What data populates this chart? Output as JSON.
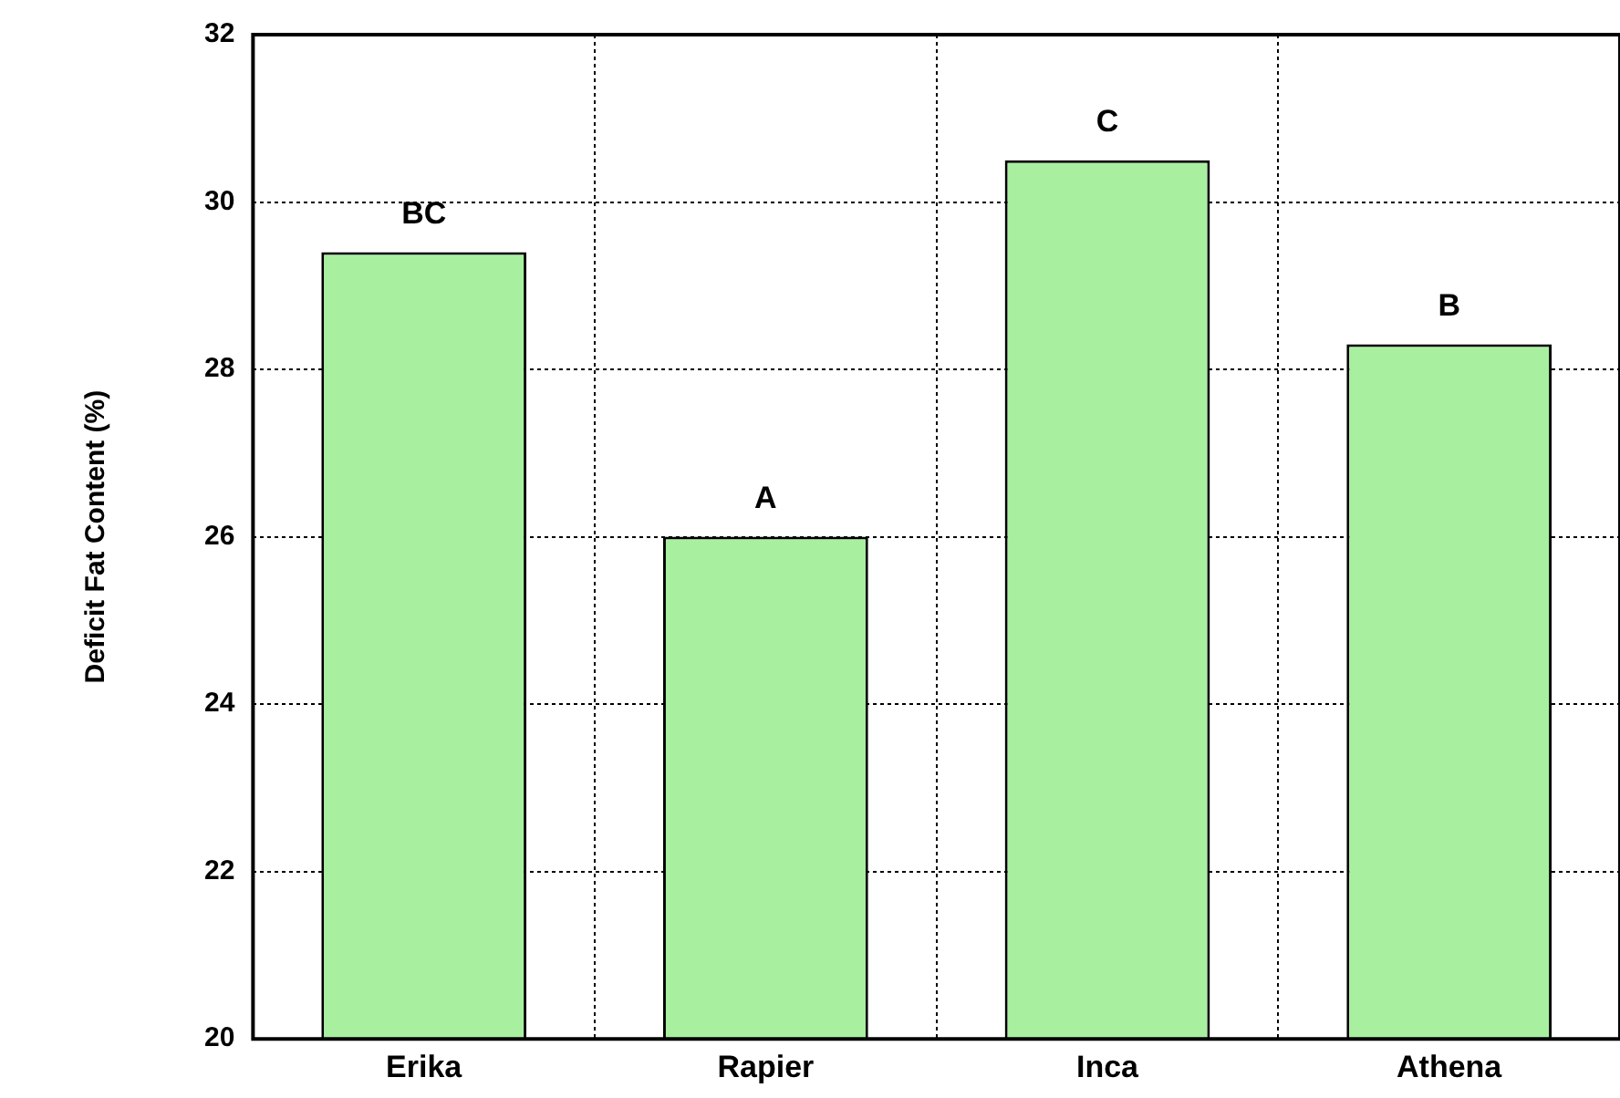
{
  "chart_data": {
    "type": "bar",
    "ylabel": "Deficit Fat Content (%)",
    "categories": [
      "Erika",
      "Rapier",
      "Inca",
      "Athena"
    ],
    "values": [
      29.4,
      26.0,
      30.5,
      28.3
    ],
    "color": "#a8f0a0",
    "ylim": [
      20,
      32
    ],
    "yticks": [
      20,
      22,
      24,
      26,
      28,
      30,
      32
    ],
    "grid": true,
    "annotations": [
      {
        "text": "BC",
        "x": "Erika",
        "y": 29.4
      },
      {
        "text": "A",
        "x": "Rapier",
        "y": 26.0
      },
      {
        "text": "C",
        "x": "Inca",
        "y": 30.5
      },
      {
        "text": "B",
        "x": "Athena",
        "y": 28.3
      }
    ]
  }
}
